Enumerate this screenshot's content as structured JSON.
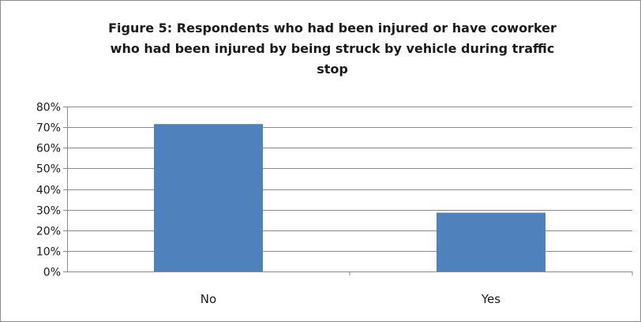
{
  "chart_data": {
    "type": "bar",
    "title": "Figure 5:  Respondents who had been injured or have coworker who had been injured by being struck by vehicle during traffic stop",
    "categories": [
      "No",
      "Yes"
    ],
    "values": [
      71.5,
      28.5
    ],
    "ylim": [
      0,
      80
    ],
    "y_ticks": [
      "0%",
      "10%",
      "20%",
      "30%",
      "40%",
      "50%",
      "60%",
      "70%",
      "80%"
    ],
    "xlabel": "",
    "ylabel": "",
    "grid": true,
    "legend": "none",
    "bar_color": "#4f81bd"
  }
}
